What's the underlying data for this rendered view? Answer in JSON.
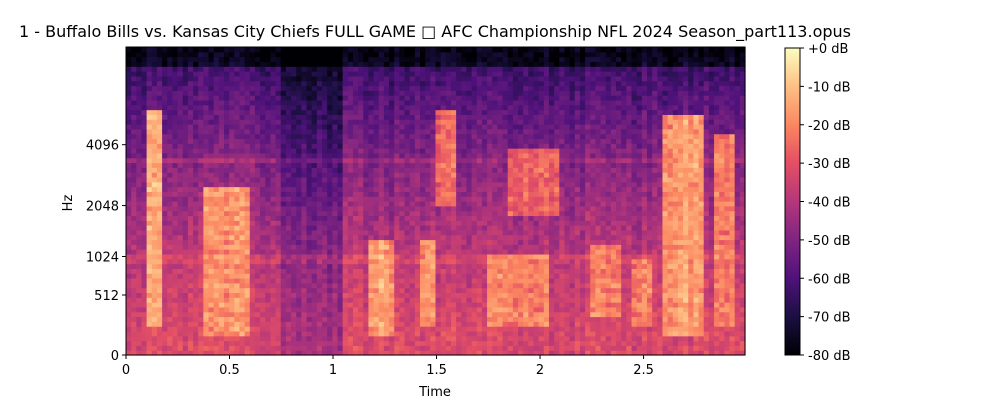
{
  "chart_data": {
    "type": "heatmap",
    "title": "1 - Buffalo Bills vs. Kansas City Chiefs FULL GAME □ AFC Championship NFL 2024 Season_part113.opus",
    "xlabel": "Time",
    "ylabel": "Hz",
    "xlim": [
      0,
      2.99
    ],
    "x_ticks": [
      {
        "value": 0,
        "label": "0"
      },
      {
        "value": 0.5,
        "label": "0.5"
      },
      {
        "value": 1,
        "label": "1"
      },
      {
        "value": 1.5,
        "label": "1.5"
      },
      {
        "value": 2,
        "label": "2"
      },
      {
        "value": 2.5,
        "label": "2.5"
      }
    ],
    "y_scale": "mel",
    "y_ticks": [
      {
        "value": 0,
        "label": "0"
      },
      {
        "value": 512,
        "label": "512"
      },
      {
        "value": 1024,
        "label": "1024"
      },
      {
        "value": 2048,
        "label": "2048"
      },
      {
        "value": 4096,
        "label": "4096"
      }
    ],
    "colorbar": {
      "colormap": "magma",
      "range_db": [
        -80,
        0
      ],
      "ticks": [
        {
          "value": 0,
          "label": "+0 dB"
        },
        {
          "value": -10,
          "label": "-10 dB"
        },
        {
          "value": -20,
          "label": "-20 dB"
        },
        {
          "value": -30,
          "label": "-30 dB"
        },
        {
          "value": -40,
          "label": "-40 dB"
        },
        {
          "value": -50,
          "label": "-50 dB"
        },
        {
          "value": -60,
          "label": "-60 dB"
        },
        {
          "value": -70,
          "label": "-70 dB"
        },
        {
          "value": -80,
          "label": "-80 dB"
        }
      ]
    },
    "energy_events": [
      {
        "t0": 0.1,
        "t1": 0.18,
        "f0": 200,
        "f1": 6000,
        "db": -12
      },
      {
        "t0": 0.38,
        "t1": 0.6,
        "f0": 150,
        "f1": 2500,
        "db": -15
      },
      {
        "t0": 1.17,
        "t1": 1.3,
        "f0": 150,
        "f1": 1300,
        "db": -12
      },
      {
        "t0": 1.42,
        "t1": 1.5,
        "f0": 200,
        "f1": 1300,
        "db": -14
      },
      {
        "t0": 1.5,
        "t1": 1.6,
        "f0": 2000,
        "f1": 6000,
        "db": -22
      },
      {
        "t0": 1.75,
        "t1": 2.05,
        "f0": 200,
        "f1": 1100,
        "db": -16
      },
      {
        "t0": 1.85,
        "t1": 2.1,
        "f0": 1800,
        "f1": 4000,
        "db": -22
      },
      {
        "t0": 2.25,
        "t1": 2.38,
        "f0": 300,
        "f1": 1200,
        "db": -18
      },
      {
        "t0": 2.45,
        "t1": 2.55,
        "f0": 200,
        "f1": 1000,
        "db": -16
      },
      {
        "t0": 2.6,
        "t1": 2.8,
        "f0": 150,
        "f1": 5500,
        "db": -12
      },
      {
        "t0": 2.85,
        "t1": 2.95,
        "f0": 200,
        "f1": 4500,
        "db": -18
      }
    ],
    "quiet_intervals": [
      {
        "t0": 0.75,
        "t1": 1.05
      }
    ]
  }
}
